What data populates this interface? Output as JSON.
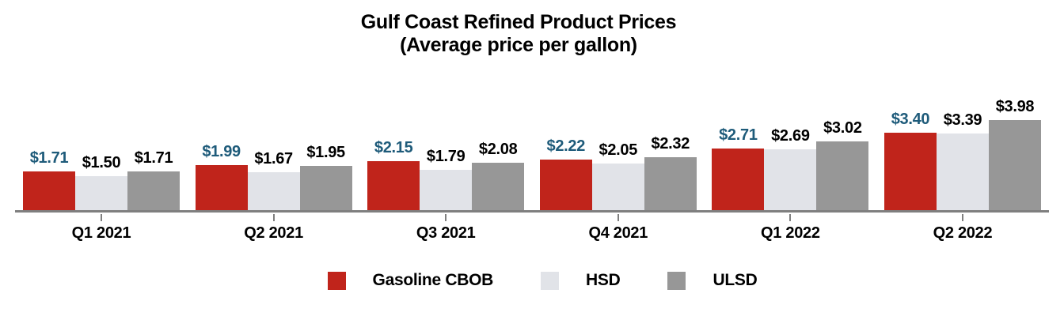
{
  "chart_data": {
    "type": "bar",
    "title": "Gulf Coast Refined Product Prices",
    "subtitle": "(Average price per gallon)",
    "categories": [
      "Q1 2021",
      "Q2 2021",
      "Q3 2021",
      "Q4 2021",
      "Q1 2022",
      "Q2 2022"
    ],
    "series": [
      {
        "name": "Gasoline CBOB",
        "color": "#c0241b",
        "label_color": "#1e5b7a",
        "values": [
          1.71,
          1.99,
          2.15,
          2.22,
          2.71,
          3.4
        ]
      },
      {
        "name": "HSD",
        "color": "#e1e3e8",
        "label_color": "#000000",
        "values": [
          1.5,
          1.67,
          1.79,
          2.05,
          2.69,
          3.39
        ]
      },
      {
        "name": "ULSD",
        "color": "#979797",
        "label_color": "#000000",
        "values": [
          1.71,
          1.95,
          2.08,
          2.32,
          3.02,
          3.98
        ]
      }
    ],
    "value_prefix": "$",
    "value_decimals": 2,
    "xlabel": "",
    "ylabel": "",
    "ylim": [
      0,
      4.2
    ],
    "grid": false,
    "y_axis_visible": false,
    "legend_position": "bottom",
    "axis_color": "#7f7f7f"
  }
}
